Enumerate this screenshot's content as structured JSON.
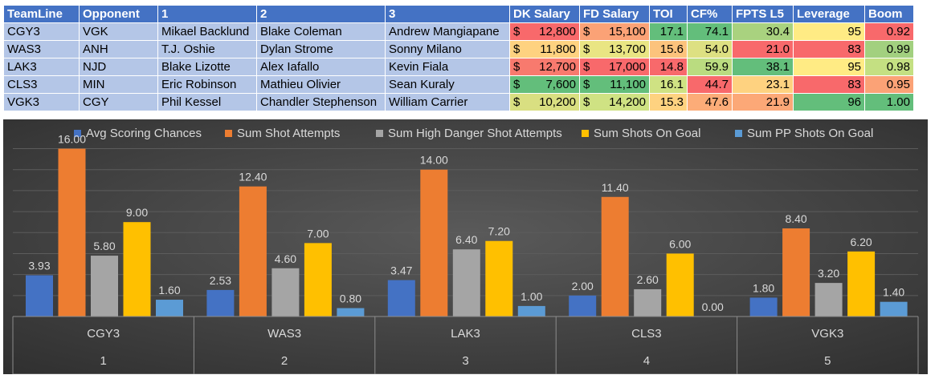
{
  "table": {
    "headers": [
      "TeamLine",
      "Opponent",
      "1",
      "2",
      "3",
      "DK Salary",
      "FD Salary",
      "TOI",
      "CF%",
      "FPTS L5",
      "Leverage",
      "Boom"
    ],
    "currency": "$",
    "rows": [
      {
        "teamline": "CGY3",
        "opponent": "VGK",
        "p1": "Mikael Backlund",
        "p2": "Blake Coleman",
        "p3": "Andrew Mangiapane",
        "dk": "12,800",
        "fd": "15,100",
        "toi": "17.1",
        "cf": "74.1",
        "fpts": "30.4",
        "lev": "95",
        "boom": "0.92"
      },
      {
        "teamline": "WAS3",
        "opponent": "ANH",
        "p1": "T.J. Oshie",
        "p2": "Dylan Strome",
        "p3": "Sonny Milano",
        "dk": "11,800",
        "fd": "13,700",
        "toi": "15.6",
        "cf": "54.0",
        "fpts": "21.0",
        "lev": "83",
        "boom": "0.99"
      },
      {
        "teamline": "LAK3",
        "opponent": "NJD",
        "p1": "Blake Lizotte",
        "p2": "Alex Iafallo",
        "p3": "Kevin Fiala",
        "dk": "12,700",
        "fd": "17,000",
        "toi": "14.8",
        "cf": "59.9",
        "fpts": "38.1",
        "lev": "95",
        "boom": "0.98"
      },
      {
        "teamline": "CLS3",
        "opponent": "MIN",
        "p1": "Eric Robinson",
        "p2": "Mathieu Olivier",
        "p3": "Sean Kuraly",
        "dk": "7,600",
        "fd": "11,100",
        "toi": "16.1",
        "cf": "44.7",
        "fpts": "23.1",
        "lev": "83",
        "boom": "0.95"
      },
      {
        "teamline": "VGK3",
        "opponent": "CGY",
        "p1": "Phil Kessel",
        "p2": "Chandler Stephenson",
        "p3": "William Carrier",
        "dk": "10,200",
        "fd": "14,200",
        "toi": "15.3",
        "cf": "47.6",
        "fpts": "21.9",
        "lev": "96",
        "boom": "1.00"
      }
    ],
    "cell_colors": [
      {
        "dk": "#f8696b",
        "fd": "#fba276",
        "toi": "#63be7b",
        "cf": "#63be7b",
        "fpts": "#a9d27f",
        "lev": "#ffeb84",
        "boom": "#f8696b"
      },
      {
        "dk": "#fed280",
        "fd": "#e9e583",
        "toi": "#fcc37c",
        "cf": "#dde082",
        "fpts": "#f8696b",
        "lev": "#f8696b",
        "boom": "#a2d07f"
      },
      {
        "dk": "#f87a6e",
        "fd": "#f8696b",
        "toi": "#f8696b",
        "cf": "#badc80",
        "fpts": "#63be7b",
        "lev": "#ffeb84",
        "boom": "#c4e082"
      },
      {
        "dk": "#63be7b",
        "fd": "#63be7b",
        "toi": "#cfe283",
        "cf": "#f8696b",
        "fpts": "#fed280",
        "lev": "#f8696b",
        "boom": "#fba276"
      },
      {
        "dk": "#d9df81",
        "fd": "#cfe283",
        "toi": "#fed280",
        "cf": "#fcac78",
        "fpts": "#fca877",
        "lev": "#63be7b",
        "boom": "#63be7b"
      }
    ]
  },
  "chart_data": {
    "type": "bar",
    "categories": [
      "CGY3",
      "WAS3",
      "LAK3",
      "CLS3",
      "VGK3"
    ],
    "category_groups": [
      "1",
      "2",
      "3",
      "4",
      "5"
    ],
    "series": [
      {
        "name": "Avg Scoring Chances",
        "values": [
          3.93,
          2.53,
          3.47,
          2.0,
          1.8
        ],
        "labels": [
          "3.93",
          "2.53",
          "3.47",
          "2.00",
          "1.80"
        ],
        "color": "#4472c4"
      },
      {
        "name": "Sum Shot Attempts",
        "values": [
          16.0,
          12.4,
          14.0,
          11.4,
          8.4
        ],
        "labels": [
          "16.00",
          "12.40",
          "14.00",
          "11.40",
          "8.40"
        ],
        "color": "#ed7d31"
      },
      {
        "name": "Sum High Danger Shot Attempts",
        "values": [
          5.8,
          4.6,
          6.4,
          2.6,
          3.2
        ],
        "labels": [
          "5.80",
          "4.60",
          "6.40",
          "2.60",
          "3.20"
        ],
        "color": "#a5a5a5"
      },
      {
        "name": "Sum Shots On Goal",
        "values": [
          9.0,
          7.0,
          7.2,
          6.0,
          6.2
        ],
        "labels": [
          "9.00",
          "7.00",
          "7.20",
          "6.00",
          "6.20"
        ],
        "color": "#ffc000"
      },
      {
        "name": "Sum PP Shots On Goal",
        "values": [
          1.6,
          0.8,
          1.0,
          0.0,
          1.4
        ],
        "labels": [
          "1.60",
          "0.80",
          "1.00",
          "0.00",
          "1.40"
        ],
        "color": "#5b9bd5"
      }
    ],
    "ylim": [
      0,
      16.5
    ],
    "grid": true,
    "legend": "top",
    "background": "#404040"
  }
}
